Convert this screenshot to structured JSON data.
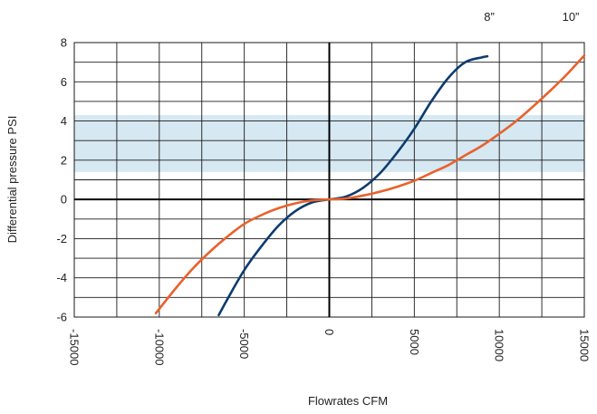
{
  "chart_data": {
    "type": "line",
    "title": "",
    "xlabel": "Flowrates CFM",
    "ylabel": "Differential pressure PSI",
    "xlim": [
      -15000,
      15000
    ],
    "ylim": [
      -6,
      8
    ],
    "x_ticks": [
      -15000,
      -10000,
      -5000,
      0,
      5000,
      10000,
      15000
    ],
    "x_tick_labels": [
      "-15000",
      "-10000",
      "-5000",
      "0",
      "5000",
      "10000",
      "15000"
    ],
    "y_ticks": [
      -6,
      -4,
      -2,
      0,
      2,
      4,
      6,
      8
    ],
    "y_tick_labels": [
      "-6",
      "-4",
      "-2",
      "0",
      "2",
      "4",
      "6",
      "8"
    ],
    "grid": true,
    "band": {
      "y_from": 1.4,
      "y_to": 4.3,
      "color": "#d6e8f2"
    },
    "series": [
      {
        "name": "8”",
        "color": "#0d3c6e",
        "x": [
          -6500,
          -6000,
          -5000,
          -4000,
          -3000,
          -2000,
          -1000,
          0,
          1000,
          2000,
          3000,
          4000,
          5000,
          6000,
          7000,
          8000,
          9000,
          9300
        ],
        "y": [
          -5.9,
          -5.1,
          -3.6,
          -2.4,
          -1.35,
          -0.6,
          -0.15,
          0,
          0.15,
          0.6,
          1.35,
          2.4,
          3.6,
          5.0,
          6.2,
          7.0,
          7.25,
          7.3
        ]
      },
      {
        "name": "10”",
        "color": "#e8622c",
        "x": [
          -10200,
          -9000,
          -8000,
          -7000,
          -6000,
          -5000,
          -4000,
          -3000,
          -2000,
          -1000,
          0,
          1000,
          2000,
          3000,
          4000,
          5000,
          6000,
          7000,
          8000,
          9000,
          10000,
          11000,
          12000,
          13000,
          14000,
          15000
        ],
        "y": [
          -5.8,
          -4.5,
          -3.5,
          -2.65,
          -1.9,
          -1.25,
          -0.8,
          -0.45,
          -0.2,
          -0.05,
          0,
          0.05,
          0.2,
          0.4,
          0.65,
          0.95,
          1.35,
          1.75,
          2.25,
          2.75,
          3.35,
          4.0,
          4.75,
          5.55,
          6.4,
          7.35
        ]
      }
    ],
    "legend": {
      "placement": "top-right",
      "labels": [
        "8”",
        "10”"
      ]
    }
  }
}
